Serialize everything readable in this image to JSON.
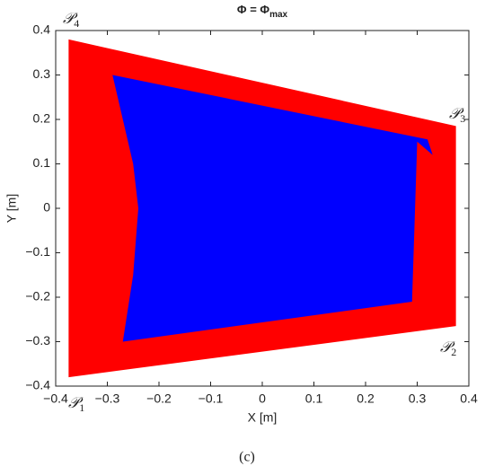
{
  "chart_data": {
    "type": "region",
    "title": "Φ = Φ",
    "title_sub": "max",
    "x_label": "X [m]",
    "y_label": "Y [m]",
    "caption": "(c)",
    "xlim": [
      -0.4,
      0.4
    ],
    "ylim": [
      -0.4,
      0.4
    ],
    "xticks": [
      {
        "value": -0.4,
        "label": "−0.4"
      },
      {
        "value": -0.3,
        "label": "−0.3"
      },
      {
        "value": -0.2,
        "label": "−0.2"
      },
      {
        "value": -0.1,
        "label": "−0.1"
      },
      0,
      0.1,
      0.2,
      0.3,
      0.4
    ],
    "yticks": [
      {
        "value": -0.4,
        "label": "−0.4"
      },
      {
        "value": -0.3,
        "label": "−0.3"
      },
      {
        "value": -0.2,
        "label": "−0.2"
      },
      {
        "value": -0.1,
        "label": "−0.1"
      },
      0,
      0.1,
      0.2,
      0.3,
      0.4
    ],
    "series": [
      {
        "color": "#ff0000",
        "x": [
          -0.375,
          0.375,
          0.375,
          -0.375
        ],
        "y": [
          0.38,
          0.185,
          -0.265,
          -0.38
        ]
      },
      {
        "color": "#0000ff",
        "x": [
          -0.29,
          0.32,
          0.33,
          0.3,
          0.29,
          -0.27,
          -0.25,
          -0.24,
          -0.25
        ],
        "y": [
          0.3,
          0.155,
          0.12,
          0.15,
          -0.21,
          -0.3,
          -0.15,
          0.0,
          0.1
        ]
      }
    ],
    "annotations": [
      {
        "text": "𝒫",
        "sub": "1"
      },
      {
        "text": "𝒫",
        "sub": "2"
      },
      {
        "text": "𝒫",
        "sub": "3"
      },
      {
        "text": "𝒫",
        "sub": "4"
      }
    ]
  }
}
